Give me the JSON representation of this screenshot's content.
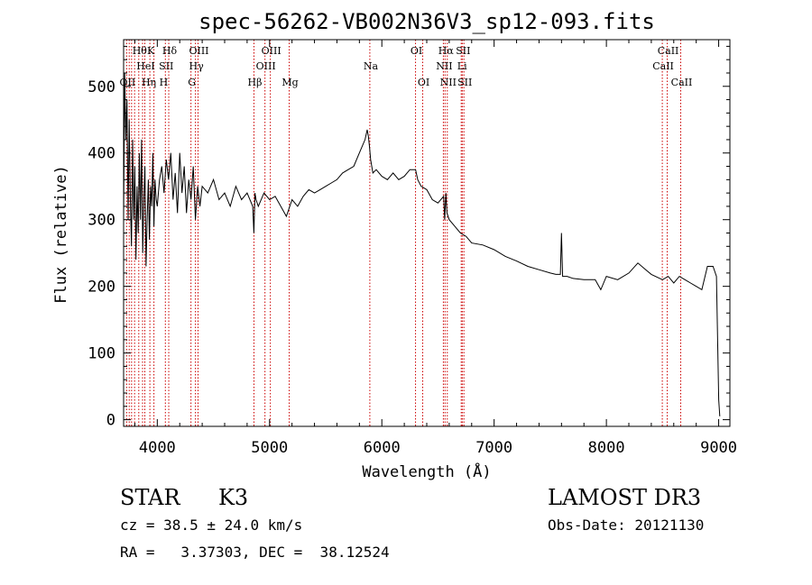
{
  "chart_data": {
    "type": "line",
    "title": "spec-56262-VB002N36V3_sp12-093.fits",
    "xlabel": "Wavelength (Å)",
    "ylabel": "Flux (relative)",
    "xlim": [
      3700,
      9100
    ],
    "ylim": [
      -10,
      570
    ],
    "x_ticks": [
      4000,
      5000,
      6000,
      7000,
      8000,
      9000
    ],
    "y_ticks": [
      0,
      100,
      200,
      300,
      400,
      500
    ],
    "grid": false,
    "series": [
      {
        "name": "flux",
        "x": [
          3700,
          3710,
          3720,
          3730,
          3740,
          3750,
          3760,
          3770,
          3780,
          3790,
          3800,
          3810,
          3820,
          3830,
          3840,
          3850,
          3860,
          3870,
          3880,
          3890,
          3900,
          3910,
          3920,
          3930,
          3940,
          3950,
          3960,
          3970,
          3980,
          3990,
          4000,
          4020,
          4040,
          4060,
          4080,
          4100,
          4120,
          4140,
          4160,
          4180,
          4200,
          4220,
          4240,
          4260,
          4280,
          4300,
          4320,
          4340,
          4360,
          4380,
          4400,
          4450,
          4500,
          4550,
          4600,
          4650,
          4700,
          4750,
          4800,
          4850,
          4860,
          4870,
          4880,
          4900,
          4950,
          5000,
          5050,
          5100,
          5150,
          5200,
          5250,
          5300,
          5350,
          5400,
          5450,
          5500,
          5550,
          5600,
          5650,
          5700,
          5750,
          5800,
          5850,
          5870,
          5880,
          5890,
          5900,
          5920,
          5950,
          6000,
          6050,
          6100,
          6150,
          6200,
          6250,
          6300,
          6320,
          6350,
          6400,
          6450,
          6500,
          6550,
          6560,
          6570,
          6580,
          6600,
          6650,
          6700,
          6750,
          6800,
          6900,
          7000,
          7100,
          7200,
          7300,
          7400,
          7500,
          7550,
          7590,
          7600,
          7610,
          7650,
          7700,
          7800,
          7900,
          7950,
          8000,
          8100,
          8200,
          8280,
          8350,
          8400,
          8500,
          8550,
          8600,
          8650,
          8700,
          8750,
          8800,
          8850,
          8900,
          8950,
          8980,
          9000,
          9010
        ],
        "values": [
          300,
          520,
          420,
          480,
          300,
          450,
          330,
          260,
          420,
          300,
          380,
          240,
          350,
          280,
          400,
          300,
          420,
          250,
          330,
          380,
          230,
          300,
          360,
          270,
          350,
          320,
          400,
          290,
          360,
          330,
          320,
          360,
          380,
          340,
          390,
          360,
          400,
          330,
          370,
          310,
          400,
          340,
          380,
          310,
          360,
          330,
          380,
          300,
          350,
          320,
          350,
          340,
          360,
          330,
          340,
          320,
          350,
          330,
          340,
          320,
          280,
          340,
          330,
          320,
          340,
          330,
          335,
          320,
          305,
          330,
          320,
          335,
          345,
          340,
          345,
          350,
          355,
          360,
          370,
          375,
          380,
          400,
          420,
          435,
          425,
          410,
          390,
          370,
          375,
          365,
          360,
          370,
          360,
          365,
          375,
          375,
          360,
          350,
          345,
          330,
          325,
          335,
          300,
          340,
          310,
          300,
          290,
          280,
          275,
          265,
          262,
          255,
          245,
          238,
          230,
          225,
          220,
          218,
          218,
          280,
          215,
          215,
          212,
          210,
          210,
          195,
          215,
          210,
          220,
          235,
          225,
          218,
          210,
          215,
          205,
          215,
          210,
          205,
          200,
          195,
          230,
          230,
          215,
          30,
          5
        ]
      }
    ],
    "lines": [
      {
        "x": 3727,
        "label": "OII",
        "row": 2
      },
      {
        "x": 3750,
        "label": "",
        "row": 0
      },
      {
        "x": 3771,
        "label": "",
        "row": 0
      },
      {
        "x": 3798,
        "label": "",
        "row": 0
      },
      {
        "x": 3835,
        "label": "Hθ",
        "row": 0
      },
      {
        "x": 3869,
        "label": "",
        "row": 0
      },
      {
        "x": 3889,
        "label": "HeI",
        "row": 1
      },
      {
        "x": 3934,
        "label": "K",
        "row": 0
      },
      {
        "x": 3970,
        "label": "Hη H",
        "row": 2
      },
      {
        "x": 4072,
        "label": "SII",
        "row": 1
      },
      {
        "x": 4102,
        "label": "Hδ",
        "row": 0
      },
      {
        "x": 4300,
        "label": "G",
        "row": 2
      },
      {
        "x": 4340,
        "label": "Hγ",
        "row": 1
      },
      {
        "x": 4363,
        "label": "OIII",
        "row": 0
      },
      {
        "x": 4861,
        "label": "Hβ",
        "row": 2
      },
      {
        "x": 4959,
        "label": "OIII",
        "row": 1
      },
      {
        "x": 5007,
        "label": "OIII",
        "row": 0
      },
      {
        "x": 5175,
        "label": "Mg",
        "row": 2
      },
      {
        "x": 5893,
        "label": "Na",
        "row": 1
      },
      {
        "x": 6300,
        "label": "OI",
        "row": 0
      },
      {
        "x": 6364,
        "label": "OI",
        "row": 2
      },
      {
        "x": 6548,
        "label": "NII",
        "row": 1
      },
      {
        "x": 6563,
        "label": "Hα",
        "row": 0
      },
      {
        "x": 6583,
        "label": "NII",
        "row": 2
      },
      {
        "x": 6707,
        "label": "Li",
        "row": 1
      },
      {
        "x": 6716,
        "label": "SII",
        "row": 0
      },
      {
        "x": 6731,
        "label": "SII",
        "row": 2
      },
      {
        "x": 8498,
        "label": "CaII",
        "row": 1
      },
      {
        "x": 8542,
        "label": "CaII",
        "row": 0
      },
      {
        "x": 8662,
        "label": "CaII",
        "row": 2
      }
    ]
  },
  "info": {
    "class": "STAR",
    "subclass": "K3",
    "survey": "LAMOST DR3",
    "cz": "cz = 38.5 ± 24.0 km/s",
    "obs_date": "Obs-Date: 20121130",
    "radec": "RA =   3.37303, DEC =  38.12524"
  }
}
